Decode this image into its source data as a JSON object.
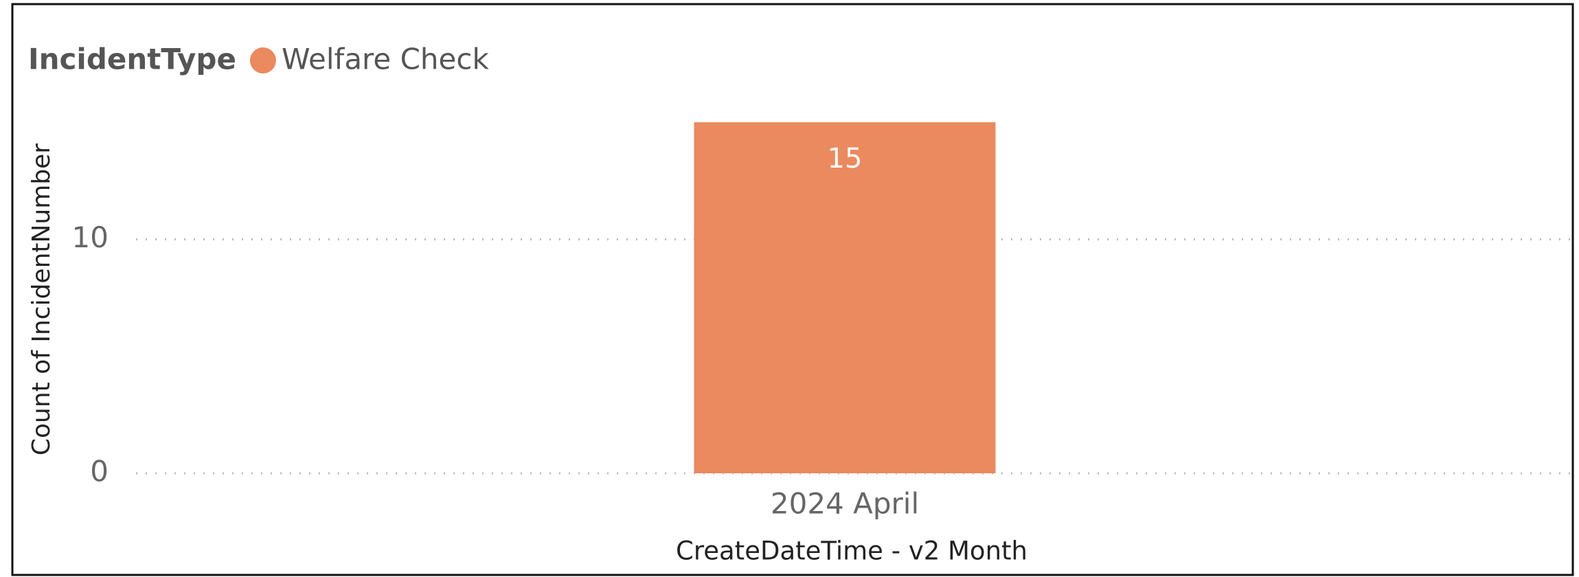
{
  "chart_data": {
    "type": "bar",
    "legend_title": "IncidentType",
    "categories": [
      "2024 April"
    ],
    "series": [
      {
        "name": "Welfare Check",
        "color": "#eb895f",
        "values": [
          15
        ]
      }
    ],
    "xlabel": "CreateDateTime - v2 Month",
    "ylabel": "Count of IncidentNumber",
    "ylim": [
      0,
      15
    ],
    "yticks": [
      0,
      10
    ],
    "grid": true,
    "legend": "top-left"
  }
}
